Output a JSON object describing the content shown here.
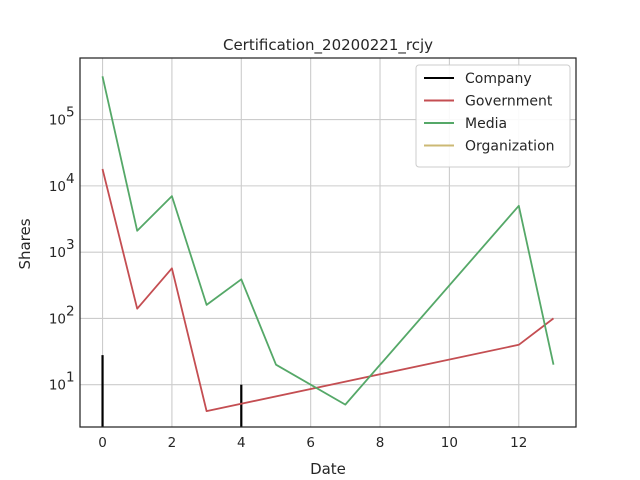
{
  "chart_data": {
    "type": "line",
    "title": "Certification_20200221_rcjy",
    "xlabel": "Date",
    "ylabel": "Shares",
    "xlim": [
      -0.65,
      13.65
    ],
    "ylim": [
      2.3,
      850000
    ],
    "yscale": "log",
    "xticks": [
      0,
      2,
      4,
      6,
      8,
      10,
      12
    ],
    "xtick_labels": [
      "0",
      "2",
      "4",
      "6",
      "8",
      "10",
      "12"
    ],
    "yticks": [
      10,
      100,
      1000,
      10000,
      100000
    ],
    "ytick_labels": [
      {
        "base": "10",
        "exp": "1"
      },
      {
        "base": "10",
        "exp": "2"
      },
      {
        "base": "10",
        "exp": "3"
      },
      {
        "base": "10",
        "exp": "4"
      },
      {
        "base": "10",
        "exp": "5"
      }
    ],
    "grid": true,
    "legend_position": "top-right",
    "series": [
      {
        "name": "Company",
        "color": "#000000",
        "style": "stem",
        "points": [
          [
            0,
            28
          ],
          [
            4,
            10
          ]
        ]
      },
      {
        "name": "Government",
        "color": "#c44e52",
        "style": "line",
        "points": [
          [
            0,
            18000
          ],
          [
            1,
            140
          ],
          [
            2,
            570
          ],
          [
            3,
            4
          ],
          [
            12,
            40
          ],
          [
            13,
            100
          ]
        ]
      },
      {
        "name": "Media",
        "color": "#55a868",
        "style": "line",
        "points": [
          [
            0,
            450000
          ],
          [
            1,
            2100
          ],
          [
            2,
            7000
          ],
          [
            3,
            160
          ],
          [
            4,
            390
          ],
          [
            5,
            20
          ],
          [
            7,
            5
          ],
          [
            12,
            5000
          ],
          [
            13,
            20
          ]
        ]
      },
      {
        "name": "Organization",
        "color": "#ccb974",
        "style": "line",
        "points": []
      }
    ]
  }
}
